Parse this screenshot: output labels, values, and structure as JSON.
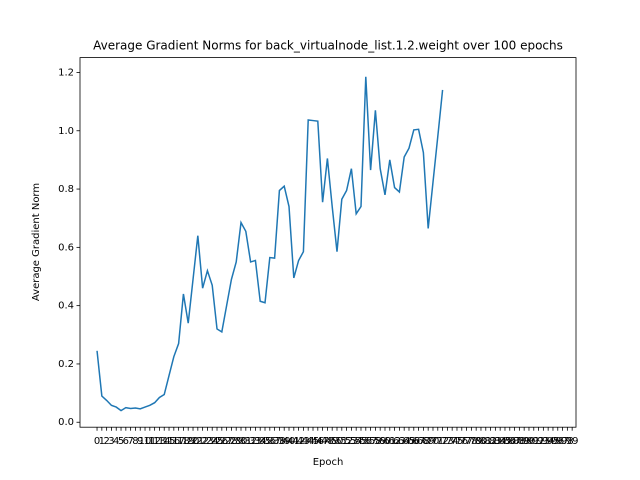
{
  "chart_data": {
    "type": "line",
    "title": "Average Gradient Norms for back_virtualnode_list.1.2.weight over 100 epochs",
    "x_label": "Epoch",
    "y_label": "Average Gradient Norm",
    "x": [
      0,
      1,
      2,
      3,
      4,
      5,
      6,
      7,
      8,
      9,
      10,
      11,
      12,
      13,
      14,
      15,
      16,
      17,
      18,
      19,
      20,
      21,
      22,
      23,
      24,
      25,
      26,
      27,
      28,
      29,
      30,
      31,
      32,
      33,
      34,
      35,
      36,
      37,
      38,
      39,
      40,
      41,
      42,
      43,
      44,
      45,
      46,
      47,
      48,
      49,
      50,
      51,
      52,
      53,
      54,
      55,
      56,
      57,
      58,
      59,
      60,
      61,
      62,
      63,
      64,
      65,
      66,
      67,
      68,
      69,
      70,
      71,
      72
    ],
    "series": [
      {
        "name": "back_virtualnode_list.1.2.weight",
        "color": "#1f77b4",
        "values": [
          0.245,
          0.09,
          0.075,
          0.058,
          0.052,
          0.04,
          0.05,
          0.047,
          0.049,
          0.046,
          0.052,
          0.058,
          0.067,
          0.085,
          0.095,
          0.16,
          0.225,
          0.27,
          0.44,
          0.34,
          0.49,
          0.64,
          0.46,
          0.52,
          0.47,
          0.32,
          0.31,
          0.4,
          0.49,
          0.55,
          0.685,
          0.655,
          0.55,
          0.555,
          0.415,
          0.41,
          0.565,
          0.563,
          0.795,
          0.81,
          0.74,
          0.495,
          0.555,
          0.585,
          1.037,
          1.035,
          1.033,
          0.755,
          0.905,
          0.74,
          0.585,
          0.765,
          0.795,
          0.87,
          0.715,
          0.74,
          1.185,
          0.865,
          1.07,
          0.87,
          0.78,
          0.9,
          0.805,
          0.79,
          0.91,
          0.94,
          1.003,
          1.005,
          0.925,
          0.665,
          0.823,
          0.98,
          1.14
        ]
      }
    ],
    "xlim": [
      -3.55,
      99.8
    ],
    "xticks": [
      0,
      1,
      2,
      3,
      4,
      5,
      6,
      7,
      8,
      9,
      10,
      11,
      12,
      13,
      14,
      15,
      16,
      17,
      18,
      19,
      20,
      21,
      22,
      23,
      24,
      25,
      26,
      27,
      28,
      29,
      30,
      31,
      32,
      33,
      34,
      35,
      36,
      37,
      38,
      39,
      40,
      41,
      42,
      43,
      44,
      45,
      46,
      47,
      48,
      49,
      50,
      51,
      52,
      53,
      54,
      55,
      56,
      57,
      58,
      59,
      60,
      61,
      62,
      63,
      64,
      65,
      66,
      67,
      68,
      69,
      70,
      71,
      72,
      73,
      74,
      75,
      76,
      77,
      78,
      79,
      80,
      81,
      82,
      83,
      84,
      85,
      86,
      87,
      88,
      89,
      90,
      91,
      92,
      93,
      94,
      95,
      96,
      97,
      98,
      99
    ],
    "ylim": [
      -0.017,
      1.251
    ],
    "yticks": [
      {
        "value": 0,
        "label": "0.0"
      },
      {
        "value": 0.2,
        "label": "0.2"
      },
      {
        "value": 0.4,
        "label": "0.4"
      },
      {
        "value": 0.6,
        "label": "0.6"
      },
      {
        "value": 0.8,
        "label": "0.8"
      },
      {
        "value": 1,
        "label": "1.0"
      },
      {
        "value": 1.2,
        "label": "1.2"
      }
    ],
    "grid": false
  }
}
